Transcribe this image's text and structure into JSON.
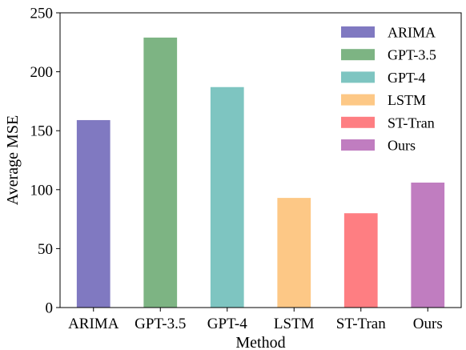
{
  "chart_data": {
    "type": "bar",
    "title": "",
    "xlabel": "Method",
    "ylabel": "Average MSE",
    "categories": [
      "ARIMA",
      "GPT-3.5",
      "GPT-4",
      "LSTM",
      "ST-Tran",
      "Ours"
    ],
    "values": [
      159,
      229,
      187,
      93,
      80,
      106
    ],
    "colors": [
      "#8079c1",
      "#7db483",
      "#7ec5c1",
      "#fdc886",
      "#fe7e82",
      "#c07dc0"
    ],
    "ylim": [
      0,
      250
    ],
    "yticks": [
      0,
      50,
      100,
      150,
      200,
      250
    ],
    "grid": false,
    "legend": {
      "placement": "top-right",
      "entries": [
        "ARIMA",
        "GPT-3.5",
        "GPT-4",
        "LSTM",
        "ST-Tran",
        "Ours"
      ]
    }
  }
}
